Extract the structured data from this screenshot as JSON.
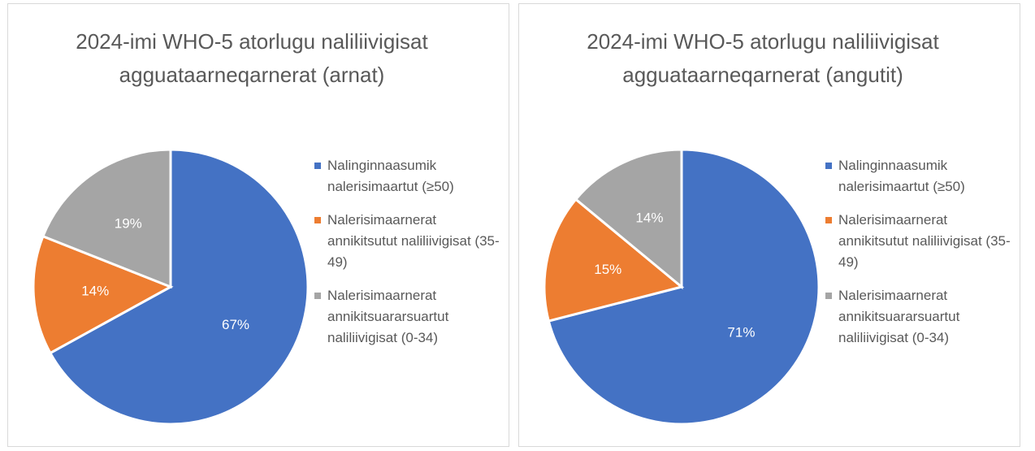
{
  "chart_data": [
    {
      "type": "pie",
      "title": "2024-imi WHO-5 atorlugu naliliivigisat agguataarneqarnerat (arnat)",
      "categories": [
        "Nalinginnaasumik nalerisimaartut (≥50)",
        "Nalerisimaarnerat annikitsutut naliliivigisat (35-49)",
        "Nalerisimaarnerat annikitsuararsuartut naliliivigisat (0-34)"
      ],
      "values": [
        67,
        14,
        19
      ],
      "value_labels": [
        "67%",
        "14%",
        "19%"
      ],
      "colors": [
        "#4472c4",
        "#ed7d31",
        "#a5a5a5"
      ],
      "legend": "right"
    },
    {
      "type": "pie",
      "title": "2024-imi WHO-5 atorlugu naliliivigisat agguataarneqarnerat (angutit)",
      "categories": [
        "Nalinginnaasumik nalerisimaartut (≥50)",
        "Nalerisimaarnerat annikitsutut naliliivigisat (35-49)",
        "Nalerisimaarnerat annikitsuararsuartut naliliivigisat (0-34)"
      ],
      "values": [
        71,
        15,
        14
      ],
      "value_labels": [
        "71%",
        "15%",
        "14%"
      ],
      "colors": [
        "#4472c4",
        "#ed7d31",
        "#a5a5a5"
      ],
      "legend": "right"
    }
  ]
}
